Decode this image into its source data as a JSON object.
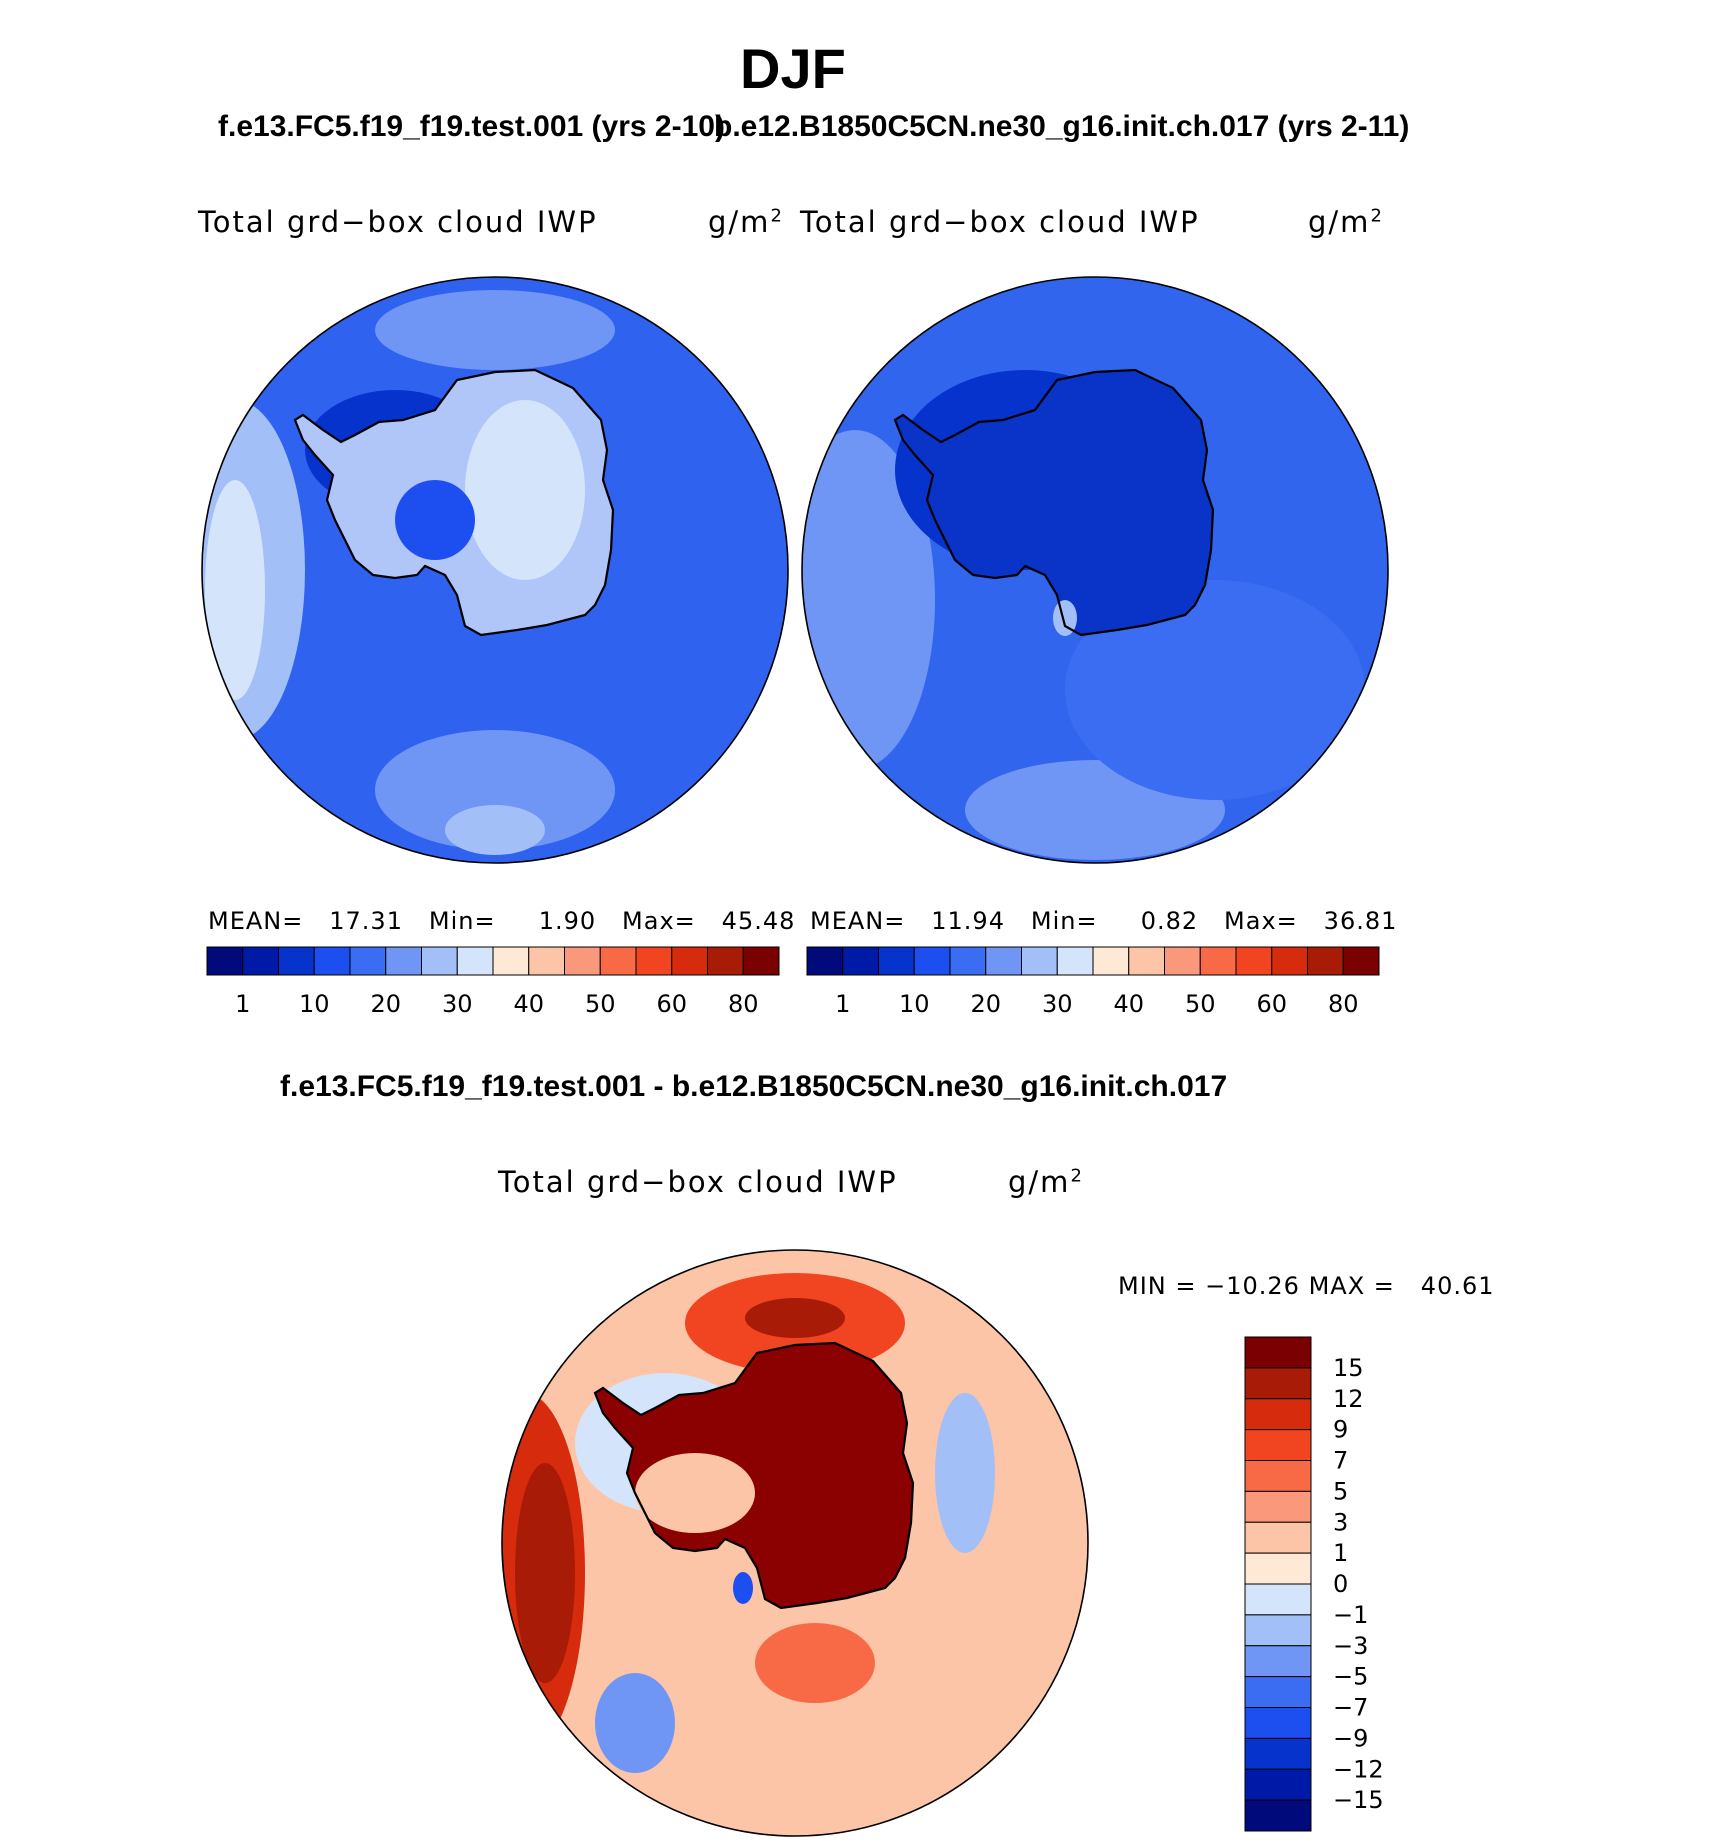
{
  "page": {
    "title": "DJF",
    "case_left": "f.e13.FC5.f19_f19.test.001 (yrs 2-10)",
    "case_right": "b.e12.B1850C5CN.ne30_g16.init.ch.017 (yrs 2-11)",
    "diff_title": "f.e13.FC5.f19_f19.test.001 - b.e12.B1850C5CN.ne30_g16.init.ch.017"
  },
  "chart_data": [
    {
      "type": "heatmap",
      "projection": "south-polar-stereographic",
      "variable": "Total grd−box cloud IWP",
      "units": "g/m",
      "units_exp": "2",
      "stats": {
        "mean_label": "MEAN=",
        "mean": "17.31",
        "min_label": "Min=",
        "min": "1.90",
        "max_label": "Max=",
        "max": "45.48"
      },
      "colorbar": {
        "labels": [
          "1",
          "10",
          "20",
          "30",
          "40",
          "50",
          "60",
          "80"
        ],
        "colors": [
          "#000a7a",
          "#001aa8",
          "#0533cc",
          "#1d4ff0",
          "#3a6df2",
          "#6f95f5",
          "#a3bff8",
          "#d4e5fb",
          "#fde9d6",
          "#fcc5a8",
          "#f9987a",
          "#f76a45",
          "#f04520",
          "#d72b0d",
          "#a81b06",
          "#7a0002"
        ]
      },
      "fill": "#2f62ee",
      "continent_fill": "#b0c6f8"
    },
    {
      "type": "heatmap",
      "projection": "south-polar-stereographic",
      "variable": "Total grd−box cloud IWP",
      "units": "g/m",
      "units_exp": "2",
      "stats": {
        "mean_label": "MEAN=",
        "mean": "11.94",
        "min_label": "Min=",
        "min": "0.82",
        "max_label": "Max=",
        "max": "36.81"
      },
      "colorbar": {
        "labels": [
          "1",
          "10",
          "20",
          "30",
          "40",
          "50",
          "60",
          "80"
        ],
        "colors": [
          "#000a7a",
          "#001aa8",
          "#0533cc",
          "#1d4ff0",
          "#3a6df2",
          "#6f95f5",
          "#a3bff8",
          "#d4e5fb",
          "#fde9d6",
          "#fcc5a8",
          "#f9987a",
          "#f76a45",
          "#f04520",
          "#d72b0d",
          "#a81b06",
          "#7a0002"
        ]
      },
      "fill": "#3265ee",
      "continent_fill": "#0a33c8"
    },
    {
      "type": "heatmap",
      "projection": "south-polar-stereographic",
      "variable": "Total grd−box cloud IWP",
      "units": "g/m",
      "units_exp": "2",
      "stats": {
        "min_label": "MIN =",
        "min": "−10.26",
        "max_label": "MAX =",
        "max": "40.61"
      },
      "colorbar": {
        "labels": [
          "15",
          "12",
          "9",
          "7",
          "5",
          "3",
          "1",
          "0",
          "−1",
          "−3",
          "−5",
          "−7",
          "−9",
          "−12",
          "−15"
        ],
        "colors": [
          "#7a0002",
          "#a81b06",
          "#d72b0d",
          "#f04520",
          "#f76a45",
          "#f9987a",
          "#fcc5a8",
          "#fde9d6",
          "#d4e5fb",
          "#a3bff8",
          "#6f95f5",
          "#3a6df2",
          "#1d4ff0",
          "#0533cc",
          "#001aa8",
          "#000a7a"
        ]
      },
      "fill": "#fcc5a8",
      "continent_fill": "#8b0000"
    }
  ]
}
